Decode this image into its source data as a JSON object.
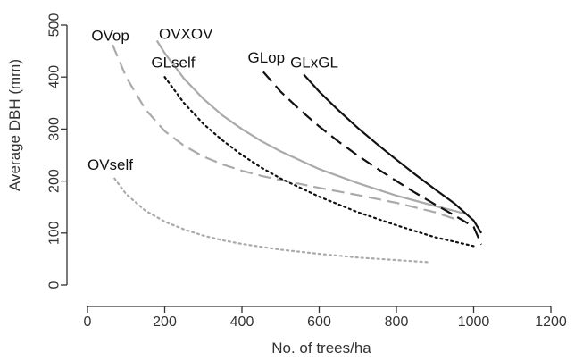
{
  "chart_data": {
    "type": "line",
    "title": "",
    "xlabel": "No. of trees/ha",
    "ylabel": "Average DBH (mm)",
    "xlim": [
      0,
      1200
    ],
    "ylim": [
      0,
      500
    ],
    "xticks": [
      0,
      200,
      400,
      600,
      800,
      1000,
      1200
    ],
    "yticks": [
      0,
      100,
      200,
      300,
      400,
      500
    ],
    "grid": false,
    "series": [
      {
        "name": "OVop",
        "color": "#aaaaaa",
        "dash": "dashed",
        "x": [
          65,
          100,
          150,
          200,
          250,
          300,
          350,
          400,
          450,
          500,
          600,
          700,
          800,
          900,
          960
        ],
        "y": [
          462,
          400,
          338,
          296,
          268,
          247,
          232,
          220,
          210,
          202,
          187,
          173,
          158,
          140,
          125
        ]
      },
      {
        "name": "OVXOV",
        "color": "#aaaaaa",
        "dash": "solid",
        "x": [
          180,
          200,
          250,
          300,
          350,
          400,
          450,
          500,
          600,
          700,
          800,
          900,
          980
        ],
        "y": [
          470,
          446,
          397,
          358,
          326,
          300,
          277,
          257,
          223,
          196,
          172,
          152,
          137
        ]
      },
      {
        "name": "GLself",
        "color": "#111111",
        "dash": "dotted",
        "x": [
          200,
          250,
          300,
          350,
          400,
          450,
          500,
          600,
          700,
          800,
          900,
          1000
        ],
        "y": [
          400,
          350,
          310,
          278,
          250,
          226,
          205,
          170,
          140,
          115,
          92,
          75
        ]
      },
      {
        "name": "GLop",
        "color": "#111111",
        "dash": "dashed",
        "x": [
          455,
          500,
          550,
          600,
          650,
          700,
          750,
          800,
          850,
          900,
          950,
          1000,
          1020
        ],
        "y": [
          410,
          372,
          337,
          305,
          276,
          249,
          224,
          200,
          177,
          155,
          134,
          112,
          78
        ]
      },
      {
        "name": "GLxGL",
        "color": "#111111",
        "dash": "solid",
        "x": [
          560,
          600,
          650,
          700,
          750,
          800,
          850,
          900,
          950,
          1000,
          1020
        ],
        "y": [
          405,
          372,
          336,
          302,
          271,
          241,
          212,
          184,
          157,
          124,
          100
        ]
      },
      {
        "name": "OVself",
        "color": "#aaaaaa",
        "dash": "dotted",
        "x": [
          70,
          100,
          150,
          200,
          250,
          300,
          350,
          400,
          500,
          600,
          700,
          800,
          880
        ],
        "y": [
          205,
          175,
          143,
          122,
          107,
          95,
          86,
          79,
          68,
          60,
          53,
          48,
          44
        ]
      }
    ],
    "labels": [
      {
        "text": "OVop",
        "x": 10,
        "y": 470
      },
      {
        "text": "OVXOV",
        "x": 185,
        "y": 473
      },
      {
        "text": "GLself",
        "x": 165,
        "y": 418
      },
      {
        "text": "GLop",
        "x": 415,
        "y": 428
      },
      {
        "text": "GLxGL",
        "x": 525,
        "y": 418
      },
      {
        "text": "OVself",
        "x": 0,
        "y": 222
      }
    ]
  }
}
